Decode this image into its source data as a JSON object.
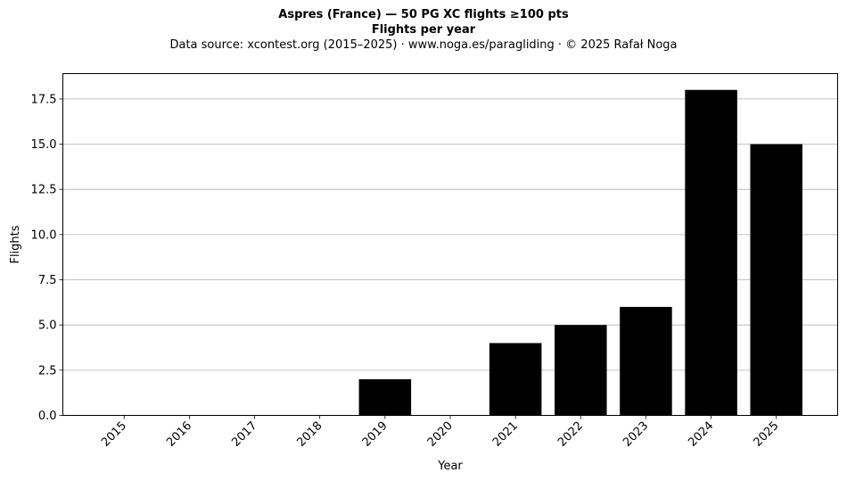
{
  "chart_data": {
    "type": "bar",
    "title": "Aspres (France)  —  50 PG XC flights ≥100 pts",
    "subtitle": "Flights per year",
    "source": "Data source: xcontest.org (2015–2025)  ·  www.noga.es/paragliding  ·  © 2025 Rafał Noga",
    "xlabel": "Year",
    "ylabel": "Flights",
    "categories": [
      "2015",
      "2016",
      "2017",
      "2018",
      "2019",
      "2020",
      "2021",
      "2022",
      "2023",
      "2024",
      "2025"
    ],
    "values": [
      0,
      0,
      0,
      0,
      2,
      0,
      4,
      5,
      6,
      18,
      15
    ],
    "ylim": [
      0,
      18.9
    ],
    "yticks": [
      0,
      2.5,
      5,
      7.5,
      10,
      12.5,
      15,
      17.5
    ],
    "ytick_labels": [
      "0.0",
      "2.5",
      "5.0",
      "7.5",
      "10.0",
      "12.5",
      "15.0",
      "17.5"
    ],
    "grid": "y",
    "bar_color": "#000000",
    "grid_color": "#b0b0b0"
  }
}
